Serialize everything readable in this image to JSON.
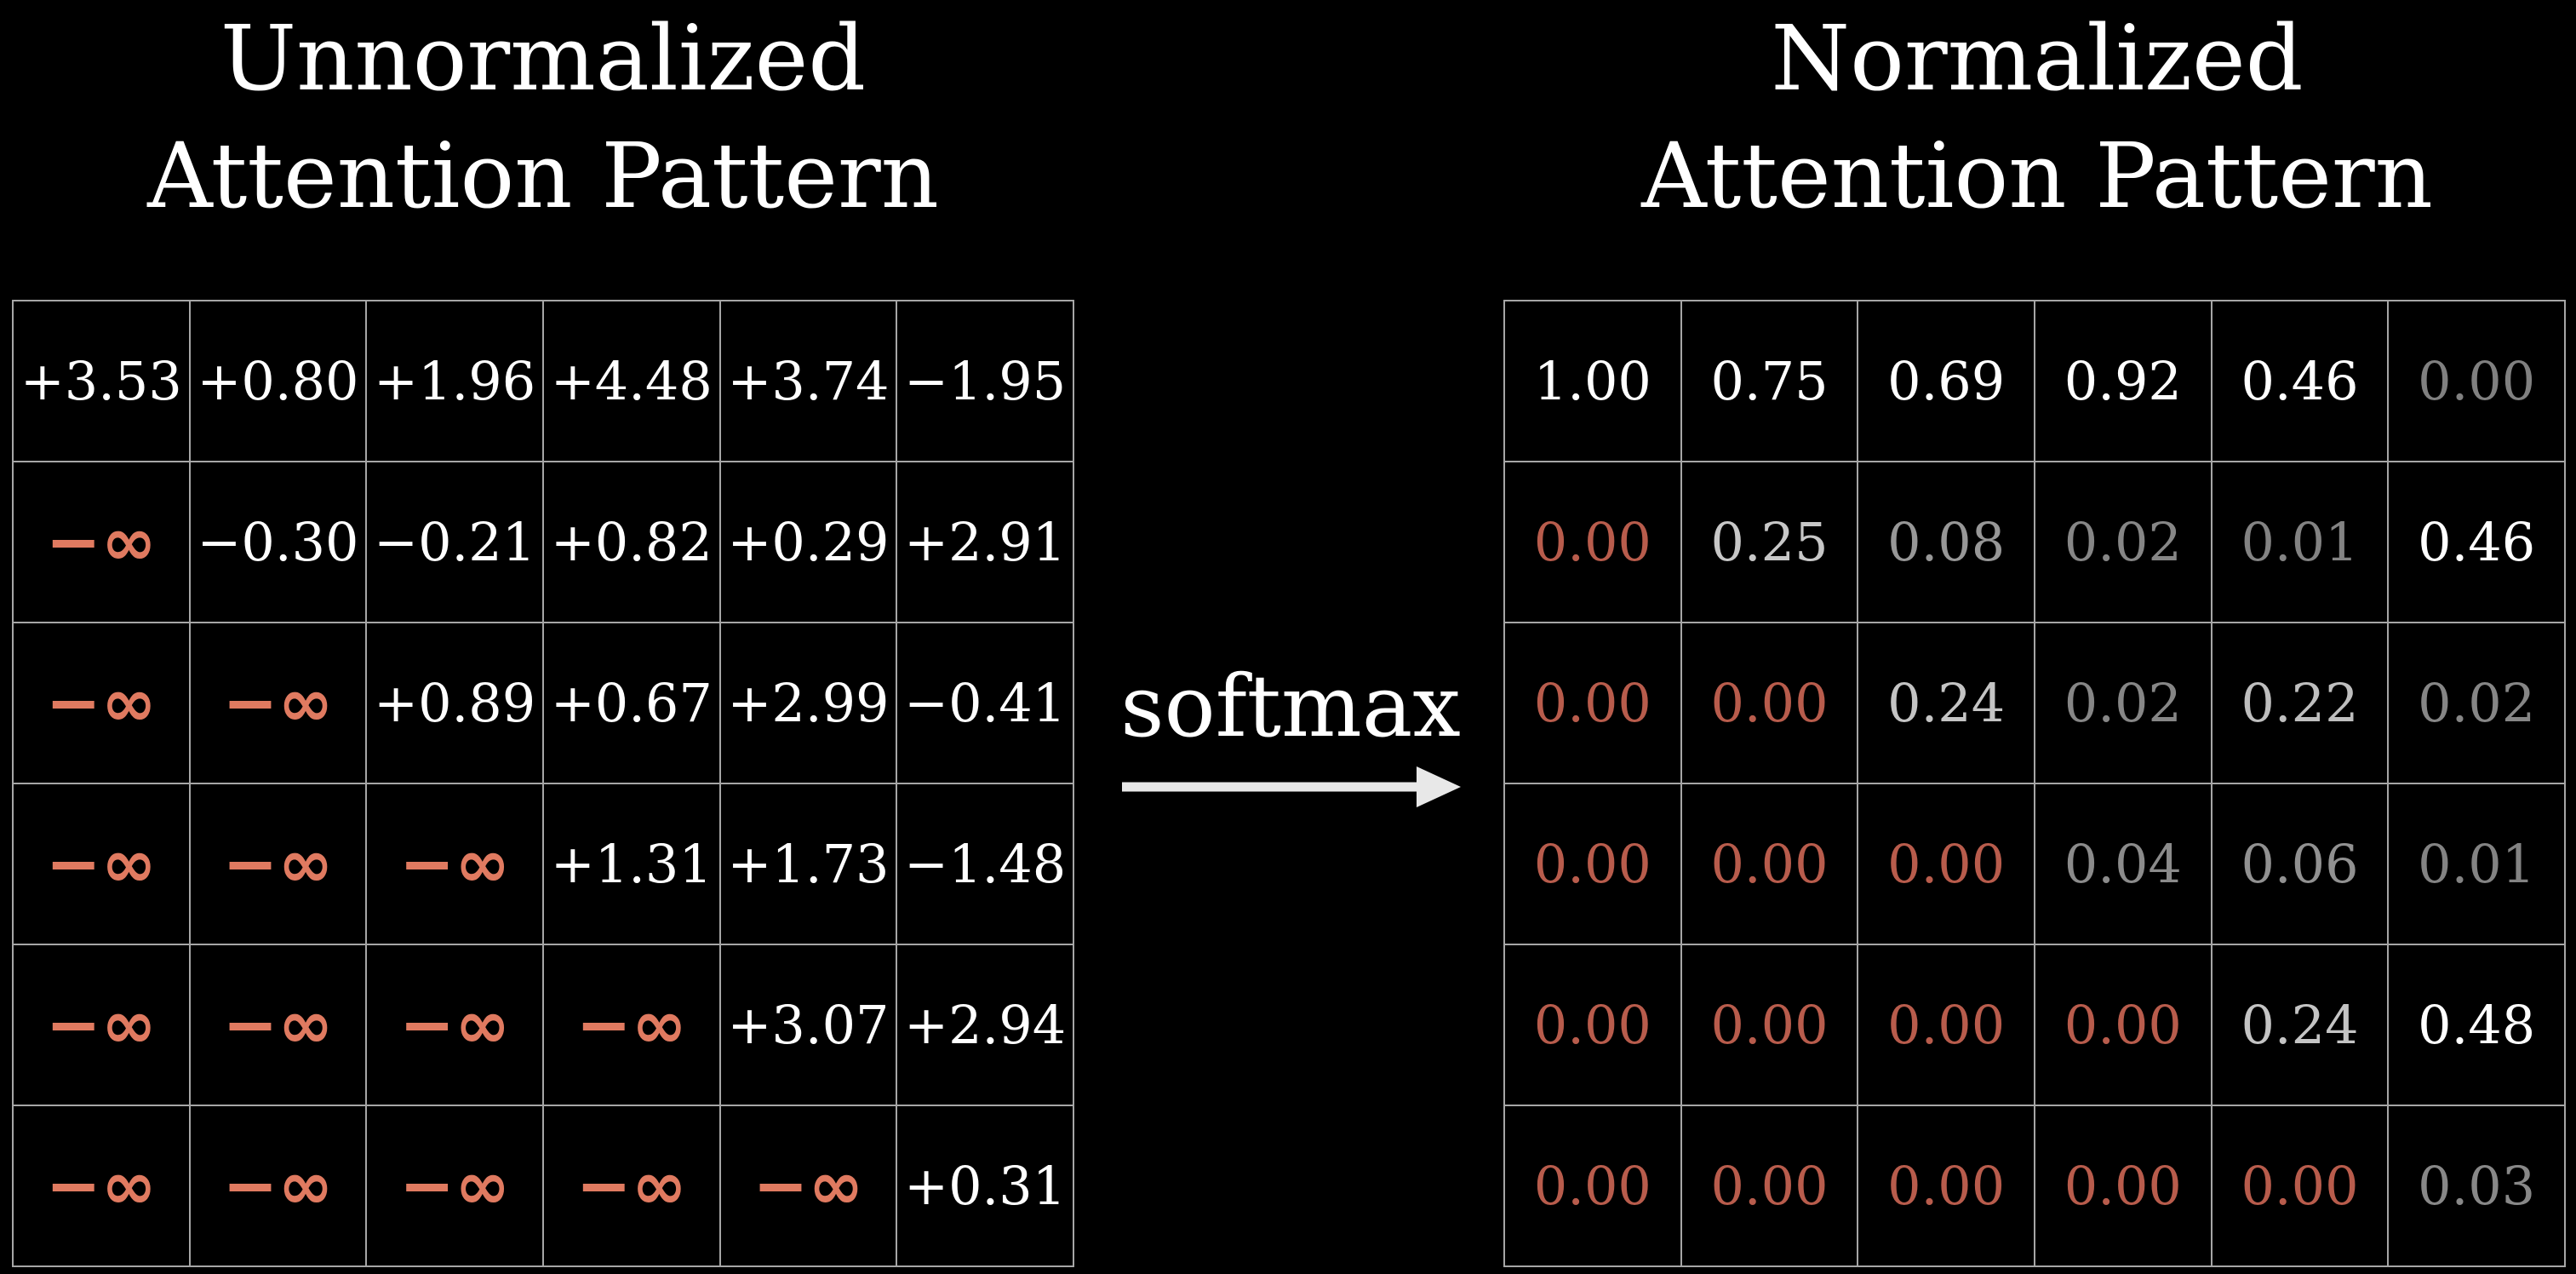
{
  "left_title": {
    "line1": "Unnormalized",
    "line2": "Attention Pattern"
  },
  "right_title": {
    "line1": "Normalized",
    "line2": "Attention Pattern"
  },
  "operation_label": "softmax",
  "colors": {
    "background": "#000000",
    "text": "#ffffff",
    "grid_line": "#a6a6a6",
    "neg_inf": "#e07a60",
    "masked_zero": "#b85c4c",
    "low_value_gray": "#8a8a8a"
  },
  "unnormalized": [
    [
      "+3.53",
      "+0.80",
      "+1.96",
      "+4.48",
      "+3.74",
      "−1.95"
    ],
    [
      "−∞",
      "−0.30",
      "−0.21",
      "+0.82",
      "+0.29",
      "+2.91"
    ],
    [
      "−∞",
      "−∞",
      "+0.89",
      "+0.67",
      "+2.99",
      "−0.41"
    ],
    [
      "−∞",
      "−∞",
      "−∞",
      "+1.31",
      "+1.73",
      "−1.48"
    ],
    [
      "−∞",
      "−∞",
      "−∞",
      "−∞",
      "+3.07",
      "+2.94"
    ],
    [
      "−∞",
      "−∞",
      "−∞",
      "−∞",
      "−∞",
      "+0.31"
    ]
  ],
  "normalized": [
    [
      "1.00",
      "0.75",
      "0.69",
      "0.92",
      "0.46",
      "0.00"
    ],
    [
      "0.00",
      "0.25",
      "0.08",
      "0.02",
      "0.01",
      "0.46"
    ],
    [
      "0.00",
      "0.00",
      "0.24",
      "0.02",
      "0.22",
      "0.02"
    ],
    [
      "0.00",
      "0.00",
      "0.00",
      "0.04",
      "0.06",
      "0.01"
    ],
    [
      "0.00",
      "0.00",
      "0.00",
      "0.00",
      "0.24",
      "0.48"
    ],
    [
      "0.00",
      "0.00",
      "0.00",
      "0.00",
      "0.00",
      "0.03"
    ]
  ]
}
